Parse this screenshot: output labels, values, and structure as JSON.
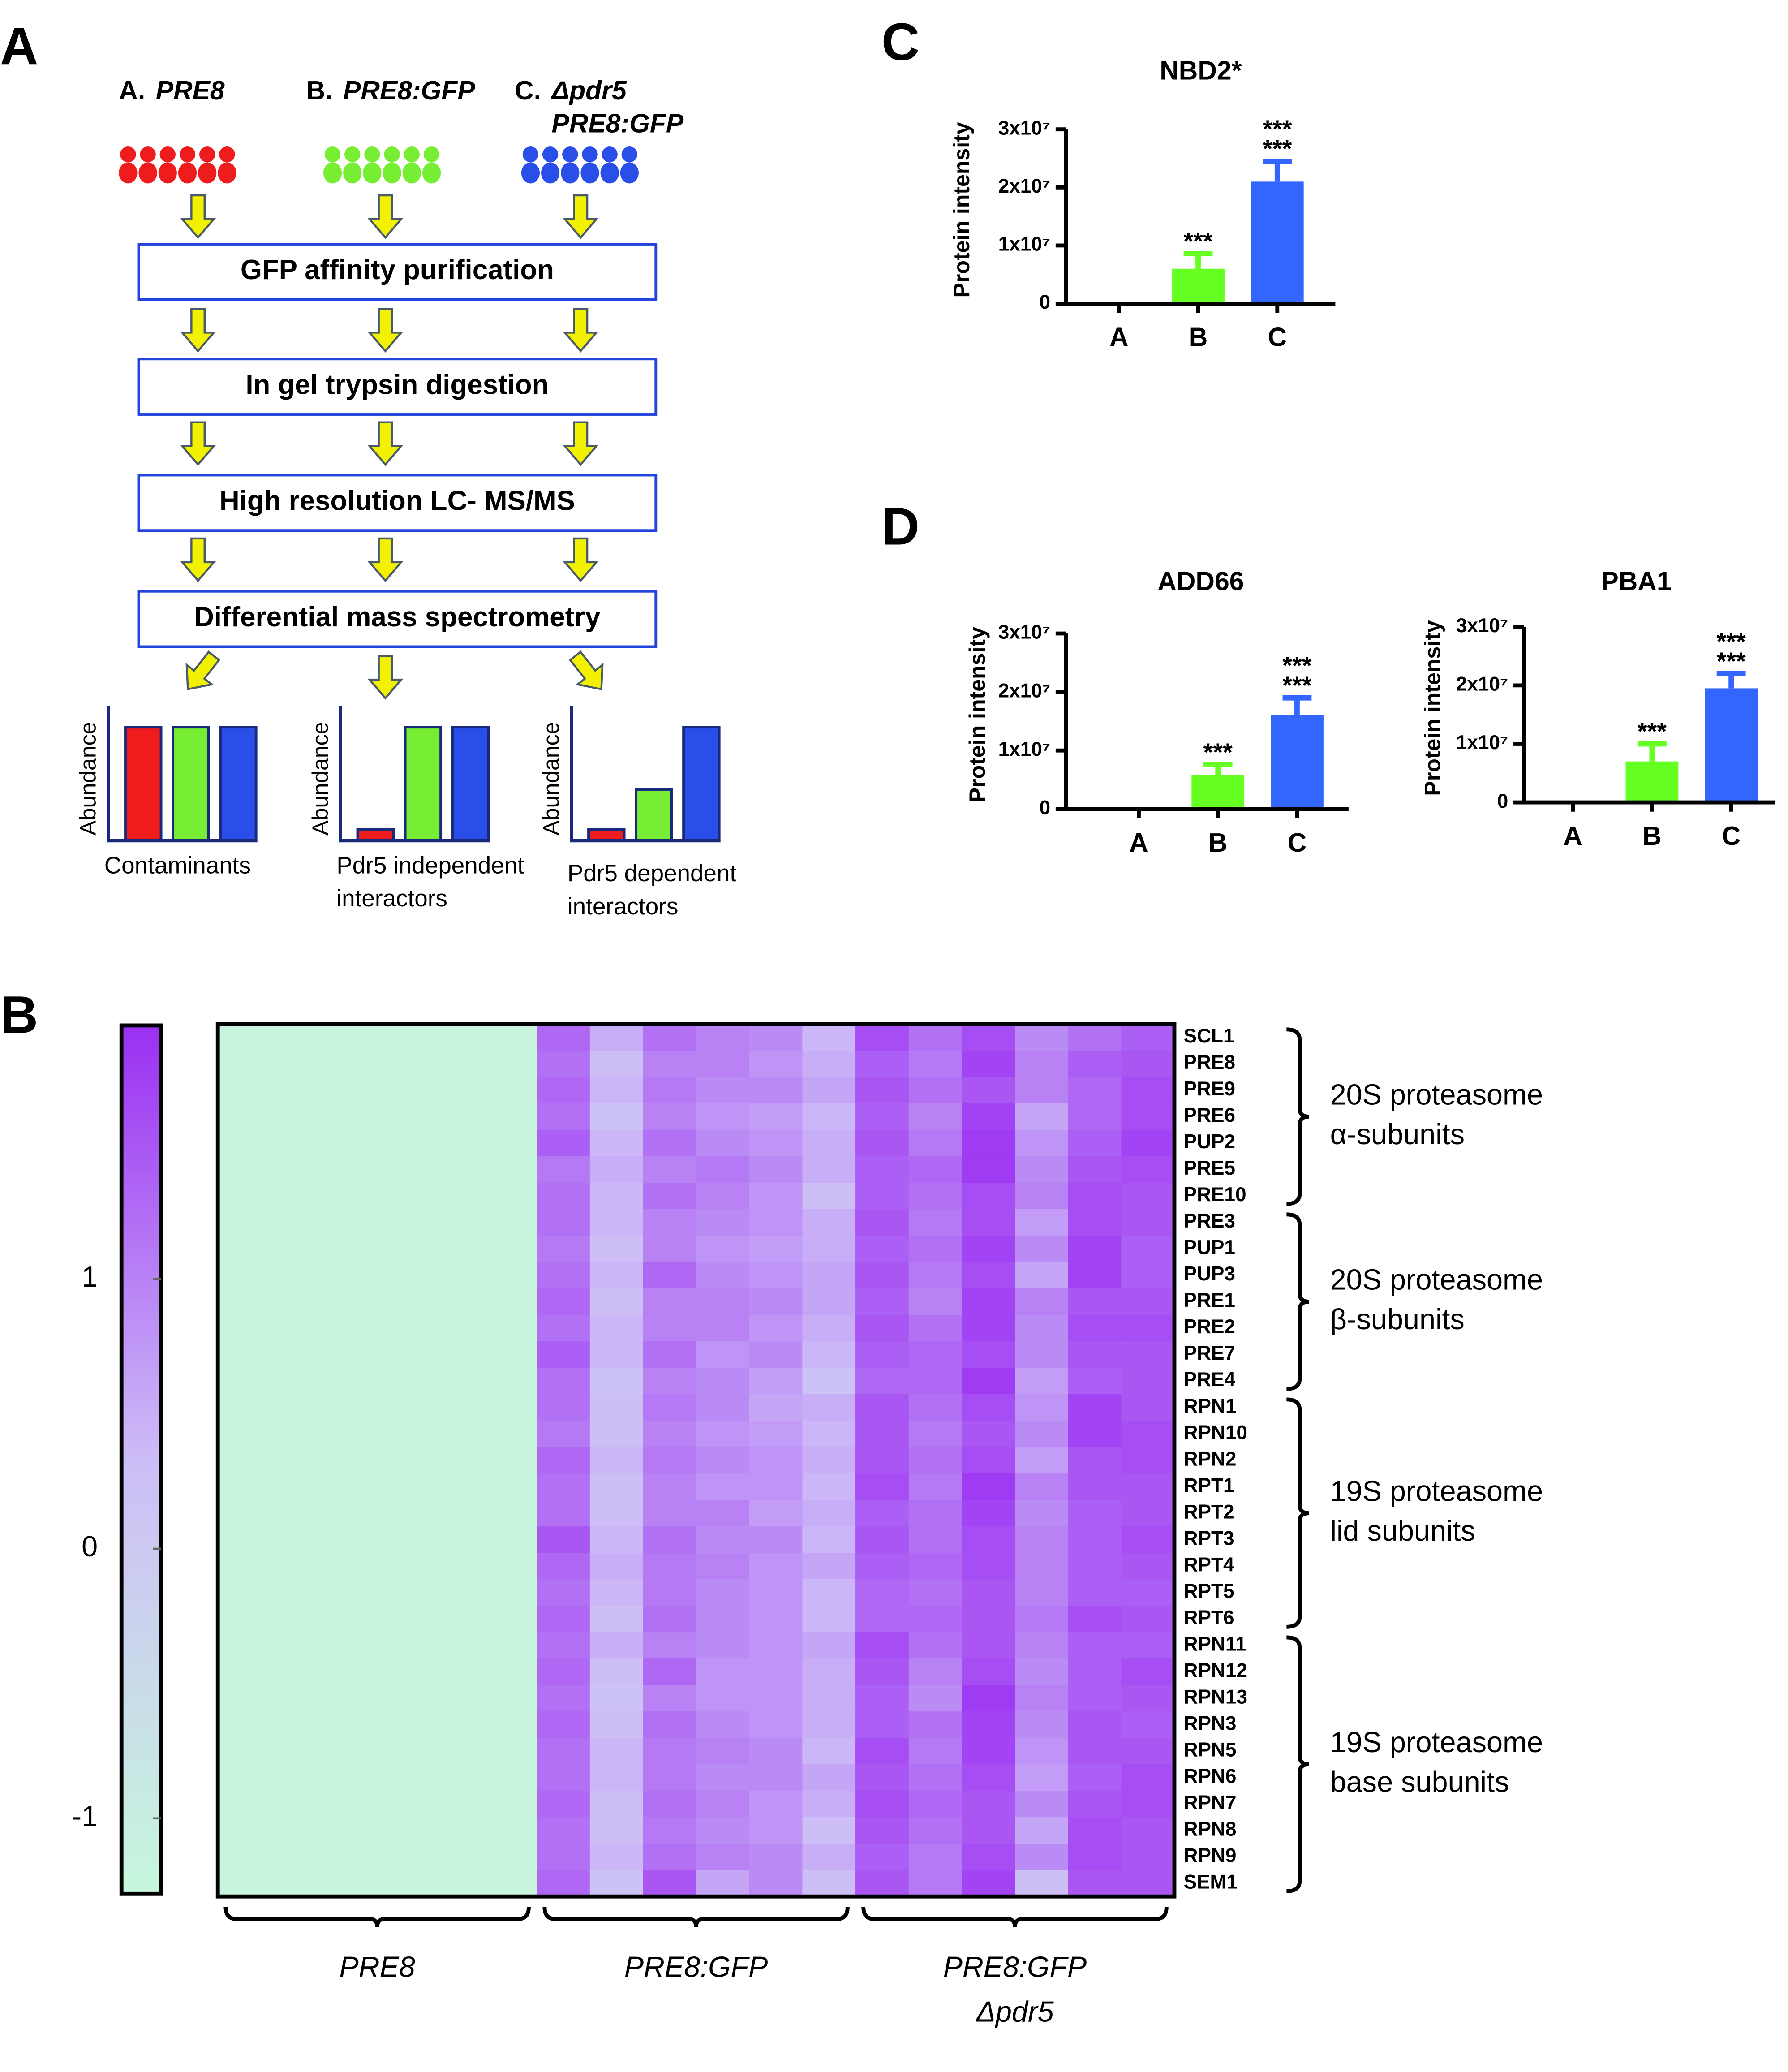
{
  "panel_labels": [
    "A",
    "B",
    "C",
    "D"
  ],
  "flowchart": {
    "strains": [
      {
        "prefix": "A.",
        "name": [
          "PRE8"
        ],
        "color": "#ee1c1c"
      },
      {
        "prefix": "B.",
        "name": [
          "PRE8:GFP"
        ],
        "color": "#77ee33"
      },
      {
        "prefix": "C.",
        "name": [
          "Δpdr5",
          "PRE8:GFP"
        ],
        "color": "#2a4fe8"
      }
    ],
    "steps": [
      "GFP affinity purification",
      "In gel trypsin digestion",
      "High resolution LC- MS/MS",
      "Differential mass spectrometry"
    ],
    "ylabel": "Abundance",
    "outcomes": [
      {
        "caption": [
          "Contaminants"
        ],
        "values": [
          1,
          1,
          1
        ]
      },
      {
        "caption": [
          "Pdr5 independent",
          "interactors"
        ],
        "values": [
          0.1,
          1,
          1
        ]
      },
      {
        "caption": [
          "Pdr5 dependent",
          "interactors"
        ],
        "values": [
          0.1,
          0.45,
          1
        ]
      }
    ]
  },
  "chart_data": [
    {
      "type": "bar",
      "title": "NBD2*",
      "ylabel": "Protein intensity",
      "categories": [
        "A",
        "B",
        "C"
      ],
      "category_colors": [
        "#ee1111",
        "#55dd11",
        "#1133ee"
      ],
      "colors": [
        "#3355ee",
        "#66ff22",
        "#3366ff"
      ],
      "values": [
        150000,
        6000000,
        21000000
      ],
      "errors": [
        null,
        2600000,
        3500000
      ],
      "ylim": [
        0,
        30000000
      ],
      "yticks": [
        0,
        {
          "value": 10000000,
          "label": "1x10⁷"
        },
        {
          "value": 20000000,
          "label": "2x10⁷"
        },
        {
          "value": 30000000,
          "label": "3x10⁷"
        }
      ],
      "significance": [
        {
          "color": "#ee1111",
          "labels": [
            null,
            "***",
            "***"
          ]
        },
        {
          "color": "#33dd11",
          "labels": [
            null,
            null,
            "***"
          ]
        }
      ]
    },
    {
      "type": "bar",
      "title": "ADD66",
      "ylabel": "Protein intensity",
      "categories": [
        "A",
        "B",
        "C"
      ],
      "category_colors": [
        "#ee1111",
        "#55dd11",
        "#1133ee"
      ],
      "colors": [
        "#3355ee",
        "#66ff22",
        "#3366ff"
      ],
      "values": [
        0,
        5800000,
        16000000
      ],
      "errors": [
        null,
        1800000,
        3000000
      ],
      "ylim": [
        0,
        30000000
      ],
      "yticks": [
        0,
        {
          "value": 10000000,
          "label": "1x10⁷"
        },
        {
          "value": 20000000,
          "label": "2x10⁷"
        },
        {
          "value": 30000000,
          "label": "3x10⁷"
        }
      ],
      "significance": [
        {
          "color": "#ee1111",
          "labels": [
            null,
            "***",
            "***"
          ]
        },
        {
          "color": "#33dd11",
          "labels": [
            null,
            null,
            "***"
          ]
        }
      ]
    },
    {
      "type": "bar",
      "title": "PBA1",
      "ylabel": "Protein intensity",
      "categories": [
        "A",
        "B",
        "C"
      ],
      "category_colors": [
        "#ee1111",
        "#55dd11",
        "#1133ee"
      ],
      "colors": [
        "#3355ee",
        "#66ff22",
        "#3366ff"
      ],
      "values": [
        150000,
        7000000,
        19500000
      ],
      "errors": [
        null,
        3000000,
        2500000
      ],
      "ylim": [
        0,
        30000000
      ],
      "yticks": [
        0,
        {
          "value": 10000000,
          "label": "1x10⁷"
        },
        {
          "value": 20000000,
          "label": "2x10⁷"
        },
        {
          "value": 30000000,
          "label": "3x10⁷"
        }
      ],
      "significance": [
        {
          "color": "#ee1111",
          "labels": [
            null,
            "***",
            "***"
          ]
        },
        {
          "color": "#33dd11",
          "labels": [
            null,
            null,
            "***"
          ]
        }
      ]
    }
  ],
  "heatmap": {
    "colorbar": {
      "lim": [
        -1.28,
        1.94
      ],
      "ticks": [
        -1,
        0,
        1
      ],
      "colors": [
        "#c6f7dc",
        "#cdbdf7",
        "#9b2ff2"
      ]
    },
    "column_groups": [
      [
        "PRE8"
      ],
      [
        "PRE8:GFP"
      ],
      [
        "PRE8:GFP",
        "Δpdr5"
      ]
    ],
    "row_groups": [
      {
        "label": [
          "20S proteasome",
          "α-subunits"
        ],
        "rows": [
          {
            "name": "SCL1",
            "values": [
              -1.2,
              -1.2,
              -1.2,
              -1.2,
              -1.2,
              -1.2,
              1.3,
              0.5,
              1.2,
              1.0,
              0.9,
              0.4,
              1.6,
              1.2,
              1.6,
              0.9,
              1.2,
              1.4
            ]
          },
          {
            "name": "PRE8",
            "values": [
              -1.2,
              -1.2,
              -1.2,
              -1.2,
              -1.2,
              -1.2,
              1.2,
              0.3,
              1.0,
              1.0,
              0.8,
              0.5,
              1.4,
              1.1,
              1.7,
              1.0,
              1.4,
              1.5
            ]
          },
          {
            "name": "PRE9",
            "values": [
              -1.2,
              -1.2,
              -1.2,
              -1.2,
              -1.2,
              -1.2,
              1.3,
              0.4,
              1.1,
              0.9,
              0.9,
              0.6,
              1.5,
              1.2,
              1.5,
              1.0,
              1.3,
              1.6
            ]
          },
          {
            "name": "PRE6",
            "values": [
              -1.2,
              -1.2,
              -1.2,
              -1.2,
              -1.2,
              -1.2,
              1.2,
              0.2,
              1.0,
              0.8,
              0.7,
              0.4,
              1.4,
              1.0,
              1.7,
              0.6,
              1.3,
              1.6
            ]
          },
          {
            "name": "PUP2",
            "values": [
              -1.2,
              -1.2,
              -1.2,
              -1.2,
              -1.2,
              -1.2,
              1.4,
              0.4,
              1.2,
              0.9,
              0.8,
              0.5,
              1.5,
              1.1,
              1.8,
              0.8,
              1.4,
              1.7
            ]
          },
          {
            "name": "PRE5",
            "values": [
              -1.2,
              -1.2,
              -1.2,
              -1.2,
              -1.2,
              -1.2,
              1.1,
              0.5,
              1.0,
              1.1,
              0.9,
              0.5,
              1.4,
              1.3,
              1.8,
              0.9,
              1.5,
              1.6
            ]
          },
          {
            "name": "PRE10",
            "values": [
              -1.2,
              -1.2,
              -1.2,
              -1.2,
              -1.2,
              -1.2,
              1.2,
              0.4,
              1.2,
              1.0,
              0.8,
              0.3,
              1.4,
              1.2,
              1.6,
              1.0,
              1.6,
              1.5
            ]
          }
        ]
      },
      {
        "label": [
          "20S proteasome",
          "β-subunits"
        ],
        "rows": [
          {
            "name": "PRE3",
            "values": [
              -1.2,
              -1.2,
              -1.2,
              -1.2,
              -1.2,
              -1.2,
              1.2,
              0.4,
              1.0,
              0.9,
              0.8,
              0.5,
              1.5,
              1.1,
              1.6,
              0.7,
              1.6,
              1.5
            ]
          },
          {
            "name": "PUP1",
            "values": [
              -1.2,
              -1.2,
              -1.2,
              -1.2,
              -1.2,
              -1.2,
              1.1,
              0.3,
              1.0,
              0.8,
              0.7,
              0.5,
              1.4,
              1.2,
              1.7,
              0.9,
              1.7,
              1.4
            ]
          },
          {
            "name": "PUP3",
            "values": [
              -1.2,
              -1.2,
              -1.2,
              -1.2,
              -1.2,
              -1.2,
              1.2,
              0.4,
              1.3,
              0.9,
              0.8,
              0.6,
              1.5,
              1.1,
              1.6,
              0.6,
              1.7,
              1.4
            ]
          },
          {
            "name": "PRE1",
            "values": [
              -1.2,
              -1.2,
              -1.2,
              -1.2,
              -1.2,
              -1.2,
              1.3,
              0.3,
              1.0,
              1.0,
              0.9,
              0.6,
              1.4,
              1.0,
              1.7,
              1.0,
              1.5,
              1.5
            ]
          },
          {
            "name": "PRE2",
            "values": [
              -1.2,
              -1.2,
              -1.2,
              -1.2,
              -1.2,
              -1.2,
              1.2,
              0.4,
              1.0,
              1.0,
              0.8,
              0.5,
              1.5,
              1.2,
              1.7,
              0.9,
              1.6,
              1.6
            ]
          },
          {
            "name": "PRE7",
            "values": [
              -1.2,
              -1.2,
              -1.2,
              -1.2,
              -1.2,
              -1.2,
              1.4,
              0.4,
              1.2,
              0.8,
              0.9,
              0.4,
              1.4,
              1.3,
              1.6,
              0.9,
              1.5,
              1.5
            ]
          },
          {
            "name": "PRE4",
            "values": [
              -1.2,
              -1.2,
              -1.2,
              -1.2,
              -1.2,
              -1.2,
              1.2,
              0.2,
              1.0,
              0.9,
              0.7,
              0.2,
              1.3,
              1.3,
              1.8,
              0.7,
              1.4,
              1.5
            ]
          }
        ]
      },
      {
        "label": [
          "19S proteasome",
          "lid subunits"
        ],
        "rows": [
          {
            "name": "RPN1",
            "values": [
              -1.2,
              -1.2,
              -1.2,
              -1.2,
              -1.2,
              -1.2,
              1.2,
              0.3,
              1.1,
              0.9,
              0.6,
              0.5,
              1.5,
              1.2,
              1.6,
              0.8,
              1.7,
              1.5
            ]
          },
          {
            "name": "RPN10",
            "values": [
              -1.2,
              -1.2,
              -1.2,
              -1.2,
              -1.2,
              -1.2,
              1.1,
              0.3,
              1.0,
              0.8,
              0.7,
              0.4,
              1.5,
              1.1,
              1.5,
              0.9,
              1.7,
              1.6
            ]
          },
          {
            "name": "RPN2",
            "values": [
              -1.2,
              -1.2,
              -1.2,
              -1.2,
              -1.2,
              -1.2,
              1.3,
              0.4,
              1.1,
              0.9,
              0.8,
              0.5,
              1.5,
              1.2,
              1.6,
              0.7,
              1.5,
              1.6
            ]
          },
          {
            "name": "RPT1",
            "values": [
              -1.2,
              -1.2,
              -1.2,
              -1.2,
              -1.2,
              -1.2,
              1.2,
              0.3,
              1.0,
              0.8,
              0.8,
              0.4,
              1.6,
              1.1,
              1.8,
              1.0,
              1.5,
              1.5
            ]
          },
          {
            "name": "RPT2",
            "values": [
              -1.2,
              -1.2,
              -1.2,
              -1.2,
              -1.2,
              -1.2,
              1.2,
              0.3,
              1.0,
              1.0,
              0.7,
              0.5,
              1.4,
              1.2,
              1.7,
              0.9,
              1.4,
              1.5
            ]
          },
          {
            "name": "RPT3",
            "values": [
              -1.2,
              -1.2,
              -1.2,
              -1.2,
              -1.2,
              -1.2,
              1.5,
              0.4,
              1.2,
              0.9,
              0.9,
              0.4,
              1.5,
              1.2,
              1.6,
              1.0,
              1.4,
              1.6
            ]
          },
          {
            "name": "RPT4",
            "values": [
              -1.2,
              -1.2,
              -1.2,
              -1.2,
              -1.2,
              -1.2,
              1.3,
              0.5,
              1.1,
              1.0,
              0.8,
              0.6,
              1.4,
              1.3,
              1.6,
              1.0,
              1.4,
              1.5
            ]
          },
          {
            "name": "RPT5",
            "values": [
              -1.2,
              -1.2,
              -1.2,
              -1.2,
              -1.2,
              -1.2,
              1.2,
              0.4,
              1.1,
              0.9,
              0.8,
              0.4,
              1.3,
              1.2,
              1.5,
              1.0,
              1.4,
              1.4
            ]
          },
          {
            "name": "RPT6",
            "values": [
              -1.2,
              -1.2,
              -1.2,
              -1.2,
              -1.2,
              -1.2,
              1.3,
              0.3,
              1.2,
              0.9,
              0.8,
              0.4,
              1.3,
              1.3,
              1.5,
              1.1,
              1.6,
              1.5
            ]
          }
        ]
      },
      {
        "label": [
          "19S proteasome",
          "base subunits"
        ],
        "rows": [
          {
            "name": "RPN11",
            "values": [
              -1.2,
              -1.2,
              -1.2,
              -1.2,
              -1.2,
              -1.2,
              1.2,
              0.5,
              1.0,
              0.9,
              0.8,
              0.6,
              1.6,
              1.2,
              1.5,
              1.0,
              1.4,
              1.4
            ]
          },
          {
            "name": "RPN12",
            "values": [
              -1.2,
              -1.2,
              -1.2,
              -1.2,
              -1.2,
              -1.2,
              1.3,
              0.3,
              1.3,
              0.8,
              0.8,
              0.5,
              1.5,
              1.0,
              1.6,
              0.9,
              1.4,
              1.6
            ]
          },
          {
            "name": "RPN13",
            "values": [
              -1.2,
              -1.2,
              -1.2,
              -1.2,
              -1.2,
              -1.2,
              1.2,
              0.2,
              1.0,
              0.8,
              0.8,
              0.5,
              1.4,
              0.9,
              1.8,
              1.0,
              1.4,
              1.5
            ]
          },
          {
            "name": "RPN3",
            "values": [
              -1.2,
              -1.2,
              -1.2,
              -1.2,
              -1.2,
              -1.2,
              1.3,
              0.3,
              1.2,
              0.9,
              0.8,
              0.5,
              1.4,
              1.2,
              1.7,
              0.9,
              1.5,
              1.4
            ]
          },
          {
            "name": "RPN5",
            "values": [
              -1.2,
              -1.2,
              -1.2,
              -1.2,
              -1.2,
              -1.2,
              1.2,
              0.4,
              1.1,
              1.0,
              0.9,
              0.4,
              1.6,
              1.1,
              1.7,
              0.8,
              1.5,
              1.5
            ]
          },
          {
            "name": "RPN6",
            "values": [
              -1.2,
              -1.2,
              -1.2,
              -1.2,
              -1.2,
              -1.2,
              1.2,
              0.4,
              1.1,
              0.9,
              0.9,
              0.6,
              1.5,
              1.2,
              1.6,
              0.7,
              1.4,
              1.6
            ]
          },
          {
            "name": "RPN7",
            "values": [
              -1.2,
              -1.2,
              -1.2,
              -1.2,
              -1.2,
              -1.2,
              1.3,
              0.3,
              1.2,
              1.0,
              0.8,
              0.5,
              1.6,
              1.3,
              1.5,
              0.9,
              1.5,
              1.6
            ]
          },
          {
            "name": "RPN8",
            "values": [
              -1.2,
              -1.2,
              -1.2,
              -1.2,
              -1.2,
              -1.2,
              1.2,
              0.3,
              1.1,
              0.9,
              0.8,
              0.3,
              1.5,
              1.2,
              1.5,
              0.6,
              1.6,
              1.5
            ]
          },
          {
            "name": "RPN9",
            "values": [
              -1.2,
              -1.2,
              -1.2,
              -1.2,
              -1.2,
              -1.2,
              1.2,
              0.4,
              1.2,
              1.0,
              0.9,
              0.5,
              1.4,
              1.1,
              1.6,
              0.9,
              1.6,
              1.5
            ]
          },
          {
            "name": "SEM1",
            "values": [
              -1.2,
              -1.2,
              -1.2,
              -1.2,
              -1.2,
              -1.2,
              1.3,
              0.2,
              1.5,
              0.6,
              0.9,
              0.3,
              1.5,
              1.1,
              1.7,
              0.3,
              1.5,
              1.5
            ]
          }
        ]
      }
    ]
  }
}
